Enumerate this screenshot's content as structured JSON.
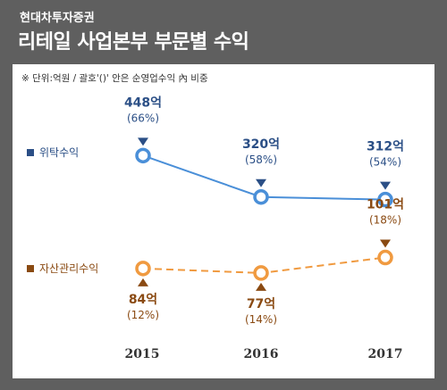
{
  "header": {
    "company": "현대차투자증권",
    "title": "리테일 사업본부 부문별 수익"
  },
  "note": "※ 단위:억원 / 괄호'()' 안은 순영업수익 內 비중",
  "colors": {
    "frame": "#5f5f5f",
    "trust": "#4a8fd8",
    "trust_label": "#2b4f86",
    "asset": "#f09a40",
    "asset_label": "#8a4a12"
  },
  "chart_data": {
    "type": "line",
    "categories": [
      "2015",
      "2016",
      "2017"
    ],
    "series": [
      {
        "name": "위탁수익",
        "values": [
          448,
          320,
          312
        ],
        "value_labels": [
          "448억",
          "320억",
          "312억"
        ],
        "share_labels": [
          "(66%)",
          "(58%)",
          "(54%)"
        ],
        "line_style": "solid"
      },
      {
        "name": "자산관리수익",
        "values": [
          84,
          77,
          101
        ],
        "value_labels": [
          "84억",
          "77억",
          "101억"
        ],
        "share_labels": [
          "(12%)",
          "(14%)",
          "(18%)"
        ],
        "line_style": "dashed"
      }
    ],
    "ylabel": "",
    "legend_position": "left",
    "grid": false
  }
}
